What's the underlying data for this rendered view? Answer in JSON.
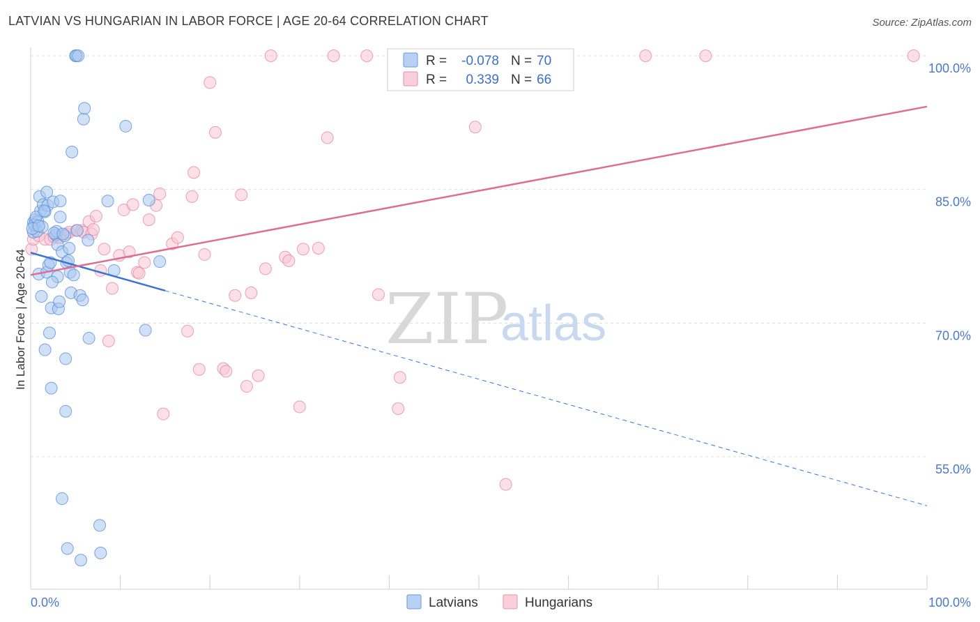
{
  "header": {
    "title": "LATVIAN VS HUNGARIAN IN LABOR FORCE | AGE 20-64 CORRELATION CHART",
    "source": "Source: ZipAtlas.com"
  },
  "watermark": {
    "zip": "ZIP",
    "atlas": "atlas"
  },
  "legend_box": {
    "rows": [
      {
        "r_label": "R =",
        "r_value": "-0.078",
        "n_label": "N =",
        "n_value": "70",
        "color": "#90b8ea"
      },
      {
        "r_label": "R =",
        "r_value": "0.339",
        "n_label": "N =",
        "n_value": "66",
        "color": "#f2a9c0"
      }
    ]
  },
  "bottom_legend": [
    {
      "label": "Latvians",
      "color": "#90b8ea"
    },
    {
      "label": "Hungarians",
      "color": "#f2a9c0"
    }
  ],
  "colors": {
    "latvian_fill": "#a9c8f0",
    "latvian_stroke": "#5b90d6",
    "latvian_line": "#3a74d0",
    "hungarian_fill": "#f8c6d6",
    "hungarian_stroke": "#e58aa8",
    "hungarian_line": "#e06c93",
    "tick_text": "#4a78c8",
    "grid": "#dddddd"
  },
  "chart_data": {
    "type": "scatter",
    "title": "LATVIAN VS HUNGARIAN IN LABOR FORCE | AGE 20-64 CORRELATION CHART",
    "xlabel": "",
    "ylabel": "In Labor Force | Age 20-64",
    "xlim": [
      0,
      100
    ],
    "ylim": [
      41,
      101.5
    ],
    "x_tick_labels": [
      {
        "value": 0,
        "label": "0.0%"
      },
      {
        "value": 100,
        "label": "100.0%"
      }
    ],
    "y_tick_labels": [
      {
        "value": 100,
        "label": "100.0%"
      },
      {
        "value": 85,
        "label": "85.0%"
      },
      {
        "value": 70,
        "label": "70.0%"
      },
      {
        "value": 55,
        "label": "55.0%"
      }
    ],
    "x_minor_ticks": [
      10,
      20,
      30,
      40,
      50,
      60,
      70,
      80,
      90,
      100
    ],
    "grid": true,
    "legend_position": "top-center",
    "series": [
      {
        "name": "Latvians",
        "r": -0.078,
        "n": 70,
        "trend": {
          "x0": 0,
          "y0": 77.9,
          "x1": 100,
          "y1": 49.5,
          "solid_until_x": 15
        },
        "points": [
          [
            0.3,
            81.3
          ],
          [
            0.3,
            80.2
          ],
          [
            0.5,
            81.6
          ],
          [
            0.7,
            80.3
          ],
          [
            0.8,
            81.4
          ],
          [
            0.9,
            75.5
          ],
          [
            1.0,
            84.2
          ],
          [
            1.1,
            82.6
          ],
          [
            1.2,
            73.0
          ],
          [
            1.4,
            83.3
          ],
          [
            1.6,
            67.0
          ],
          [
            1.6,
            82.5
          ],
          [
            1.8,
            75.7
          ],
          [
            1.8,
            84.7
          ],
          [
            1.9,
            83.2
          ],
          [
            2.0,
            76.5
          ],
          [
            2.1,
            68.9
          ],
          [
            2.2,
            76.8
          ],
          [
            2.3,
            71.7
          ],
          [
            2.3,
            62.7
          ],
          [
            2.5,
            83.6
          ],
          [
            2.8,
            79.9
          ],
          [
            2.9,
            80.3
          ],
          [
            3.0,
            78.8
          ],
          [
            3.0,
            75.2
          ],
          [
            3.1,
            71.6
          ],
          [
            3.2,
            72.4
          ],
          [
            3.3,
            81.9
          ],
          [
            3.3,
            83.7
          ],
          [
            3.5,
            78.0
          ],
          [
            3.5,
            50.3
          ],
          [
            3.8,
            79.8
          ],
          [
            3.9,
            66.0
          ],
          [
            3.9,
            60.1
          ],
          [
            4.0,
            76.8
          ],
          [
            4.1,
            44.7
          ],
          [
            4.2,
            77.0
          ],
          [
            4.4,
            75.7
          ],
          [
            4.5,
            73.4
          ],
          [
            4.6,
            89.2
          ],
          [
            4.8,
            75.4
          ],
          [
            5.0,
            100.0
          ],
          [
            5.1,
            100.0
          ],
          [
            5.3,
            100.0
          ],
          [
            5.5,
            73.1
          ],
          [
            5.6,
            43.4
          ],
          [
            5.8,
            72.6
          ],
          [
            5.9,
            92.9
          ],
          [
            6.0,
            94.1
          ],
          [
            6.4,
            79.3
          ],
          [
            6.5,
            68.3
          ],
          [
            7.7,
            47.3
          ],
          [
            7.8,
            44.2
          ],
          [
            8.6,
            83.7
          ],
          [
            9.3,
            75.9
          ],
          [
            10.6,
            92.1
          ],
          [
            12.8,
            69.2
          ],
          [
            13.2,
            83.8
          ],
          [
            14.4,
            76.9
          ],
          [
            0.4,
            81.0
          ],
          [
            0.6,
            81.9
          ],
          [
            1.3,
            80.8
          ],
          [
            2.6,
            80.1
          ],
          [
            3.6,
            80.0
          ],
          [
            0.2,
            80.6
          ],
          [
            1.5,
            82.6
          ],
          [
            2.4,
            74.6
          ],
          [
            4.3,
            78.4
          ],
          [
            0.9,
            80.9
          ],
          [
            5.2,
            80.4
          ]
        ]
      },
      {
        "name": "Hungarians",
        "r": 0.339,
        "n": 66,
        "trend": {
          "x0": 0,
          "y0": 75.4,
          "x1": 100,
          "y1": 94.3
        },
        "points": [
          [
            0.1,
            78.3
          ],
          [
            0.3,
            79.4
          ],
          [
            0.9,
            79.8
          ],
          [
            1.6,
            79.4
          ],
          [
            2.2,
            79.4
          ],
          [
            2.6,
            79.7
          ],
          [
            3.0,
            79.6
          ],
          [
            3.3,
            79.6
          ],
          [
            4.0,
            80.0
          ],
          [
            4.3,
            80.2
          ],
          [
            5.1,
            80.4
          ],
          [
            5.7,
            80.4
          ],
          [
            5.9,
            80.2
          ],
          [
            6.5,
            81.4
          ],
          [
            6.8,
            80.0
          ],
          [
            7.0,
            80.5
          ],
          [
            7.3,
            82.0
          ],
          [
            7.8,
            75.9
          ],
          [
            8.2,
            78.3
          ],
          [
            8.7,
            68.0
          ],
          [
            9.1,
            73.9
          ],
          [
            9.9,
            77.6
          ],
          [
            10.4,
            82.7
          ],
          [
            11.0,
            78.0
          ],
          [
            11.4,
            83.3
          ],
          [
            11.9,
            75.7
          ],
          [
            12.1,
            75.6
          ],
          [
            12.7,
            76.8
          ],
          [
            13.2,
            81.6
          ],
          [
            14.0,
            83.2
          ],
          [
            14.4,
            84.5
          ],
          [
            14.8,
            59.8
          ],
          [
            15.8,
            78.9
          ],
          [
            16.4,
            79.6
          ],
          [
            17.5,
            69.1
          ],
          [
            18.0,
            84.2
          ],
          [
            18.2,
            86.9
          ],
          [
            18.8,
            64.8
          ],
          [
            19.4,
            77.7
          ],
          [
            20.0,
            97.0
          ],
          [
            20.6,
            91.4
          ],
          [
            21.5,
            64.9
          ],
          [
            21.8,
            64.6
          ],
          [
            22.8,
            73.1
          ],
          [
            23.5,
            84.4
          ],
          [
            24.1,
            62.9
          ],
          [
            24.6,
            73.4
          ],
          [
            25.4,
            64.1
          ],
          [
            26.2,
            76.1
          ],
          [
            26.8,
            100.0
          ],
          [
            28.4,
            77.4
          ],
          [
            28.8,
            77.0
          ],
          [
            30.0,
            60.6
          ],
          [
            30.4,
            78.3
          ],
          [
            32.1,
            78.4
          ],
          [
            33.1,
            90.8
          ],
          [
            33.8,
            100.0
          ],
          [
            37.5,
            100.0
          ],
          [
            38.8,
            73.2
          ],
          [
            41.0,
            60.4
          ],
          [
            41.2,
            63.9
          ],
          [
            49.6,
            92.0
          ],
          [
            53.0,
            51.9
          ],
          [
            68.6,
            100.0
          ],
          [
            75.3,
            100.0
          ],
          [
            98.5,
            100.0
          ]
        ]
      }
    ]
  }
}
